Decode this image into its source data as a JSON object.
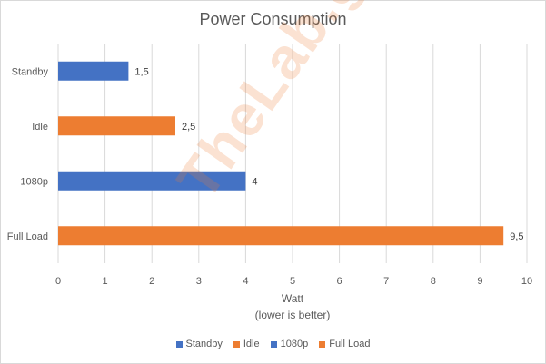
{
  "chart_data": {
    "type": "bar",
    "orientation": "horizontal",
    "title": "Power Consumption",
    "categories": [
      "Standby",
      "Idle",
      "1080p",
      "Full Load"
    ],
    "values": [
      1.5,
      2.5,
      4,
      9.5
    ],
    "value_labels": [
      "1,5",
      "2,5",
      "4",
      "9,5"
    ],
    "bar_colors": [
      "#4472c4",
      "#ed7d31",
      "#4472c4",
      "#ed7d31"
    ],
    "xlabel": "Watt",
    "xlabel_note": "(lower is better)",
    "xlim": [
      0,
      10
    ],
    "xticks": [
      0,
      1,
      2,
      3,
      4,
      5,
      6,
      7,
      8,
      9,
      10
    ],
    "grid": "vertical",
    "legend_position": "bottom",
    "legend": [
      {
        "name": "Standby",
        "color": "#4472c4"
      },
      {
        "name": "Idle",
        "color": "#ed7d31"
      },
      {
        "name": "1080p",
        "color": "#4472c4"
      },
      {
        "name": "Full Load",
        "color": "#ed7d31"
      }
    ]
  },
  "watermark": "TheLab.gr"
}
